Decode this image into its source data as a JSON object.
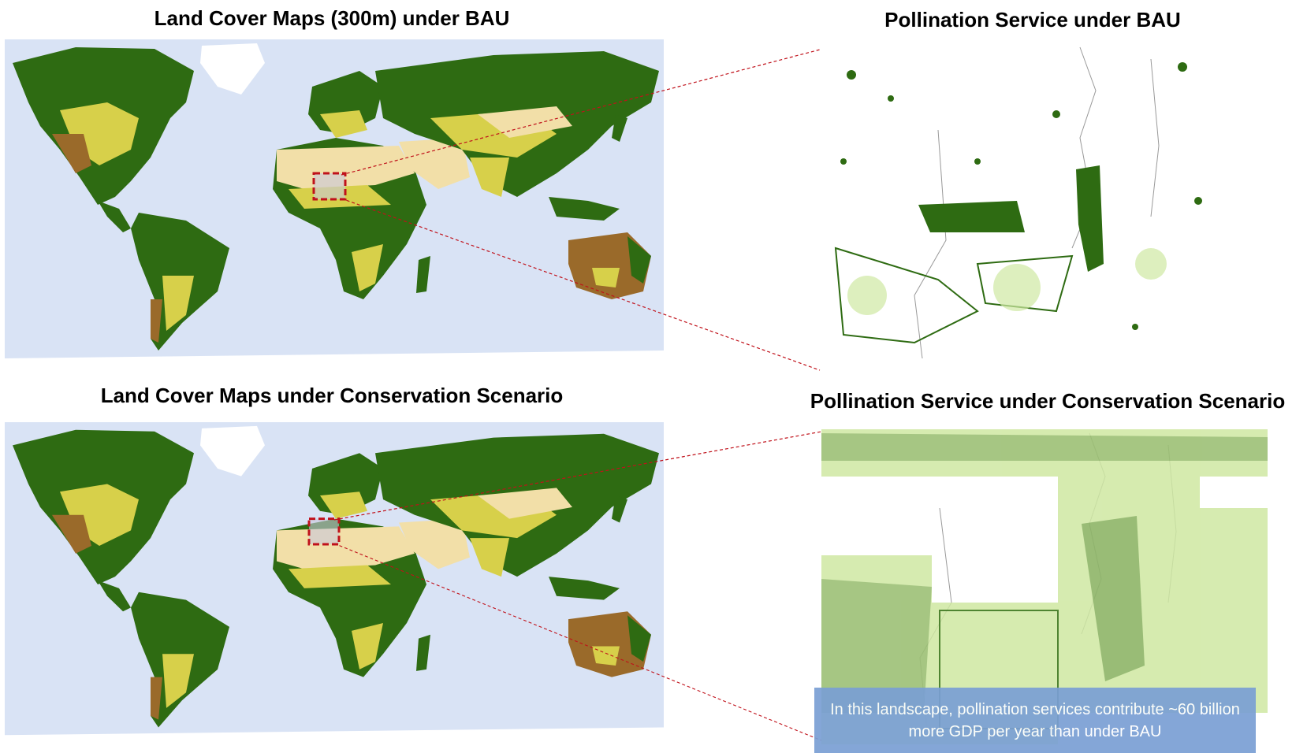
{
  "titles": {
    "top_left": "Land Cover Maps (300m) under BAU",
    "bottom_left": "Land Cover Maps under Conservation Scenario",
    "top_right": "Pollination Service under BAU",
    "bottom_right": "Pollination Service under Conservation Scenario"
  },
  "callout": {
    "text": "In this landscape, pollination services contribute ~60 billion more GDP per year than under BAU"
  },
  "colors": {
    "ocean": "#d9e3f5",
    "forest": "#2e6b12",
    "cropland": "#d7d04a",
    "shrub": "#9a6a2a",
    "desert": "#f2dfa8",
    "ice": "#ffffff",
    "pollination_high": "#1f6b2e",
    "pollination_low": "#cfe8a2",
    "highlight_box": "#c0111a",
    "connector": "#c0111a"
  }
}
